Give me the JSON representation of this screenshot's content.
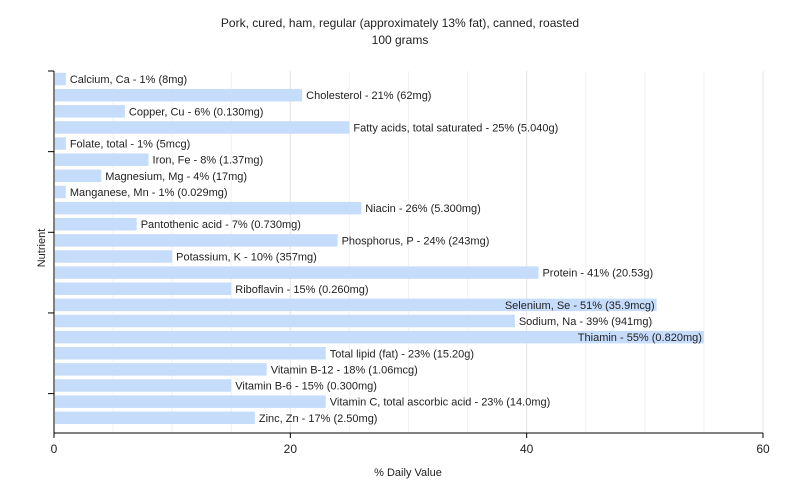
{
  "chart_data": {
    "type": "bar",
    "orientation": "horizontal",
    "title": "Pork, cured, ham, regular (approximately 13% fat), canned, roasted",
    "subtitle": "100 grams",
    "xlabel": "% Daily Value",
    "ylabel": "Nutrient",
    "xlim": [
      0,
      60
    ],
    "x_ticks": [
      0,
      20,
      40,
      60
    ],
    "grid": true,
    "bar_color": "#c6dcfb",
    "categories": [
      "Calcium, Ca",
      "Cholesterol",
      "Copper, Cu",
      "Fatty acids, total saturated",
      "Folate, total",
      "Iron, Fe",
      "Magnesium, Mg",
      "Manganese, Mn",
      "Niacin",
      "Pantothenic acid",
      "Phosphorus, P",
      "Potassium, K",
      "Protein",
      "Riboflavin",
      "Selenium, Se",
      "Sodium, Na",
      "Thiamin",
      "Total lipid (fat)",
      "Vitamin B-12",
      "Vitamin B-6",
      "Vitamin C, total ascorbic acid",
      "Zinc, Zn"
    ],
    "values": [
      1,
      21,
      6,
      25,
      1,
      8,
      4,
      1,
      26,
      7,
      24,
      10,
      41,
      15,
      51,
      39,
      55,
      23,
      18,
      15,
      23,
      17
    ],
    "bar_labels": [
      "Calcium, Ca - 1% (8mg)",
      "Cholesterol - 21% (62mg)",
      "Copper, Cu - 6% (0.130mg)",
      "Fatty acids, total saturated - 25% (5.040g)",
      "Folate, total - 1% (5mcg)",
      "Iron, Fe - 8% (1.37mg)",
      "Magnesium, Mg - 4% (17mg)",
      "Manganese, Mn - 1% (0.029mg)",
      "Niacin - 26% (5.300mg)",
      "Pantothenic acid - 7% (0.730mg)",
      "Phosphorus, P - 24% (243mg)",
      "Potassium, K - 10% (357mg)",
      "Protein - 41% (20.53g)",
      "Riboflavin - 15% (0.260mg)",
      "Selenium, Se - 51% (35.9mcg)",
      "Sodium, Na - 39% (941mg)",
      "Thiamin - 55% (0.820mg)",
      "Total lipid (fat) - 23% (15.20g)",
      "Vitamin B-12 - 18% (1.06mcg)",
      "Vitamin B-6 - 15% (0.300mg)",
      "Vitamin C, total ascorbic acid - 23% (14.0mg)",
      "Zinc, Zn - 17% (2.50mg)"
    ]
  }
}
